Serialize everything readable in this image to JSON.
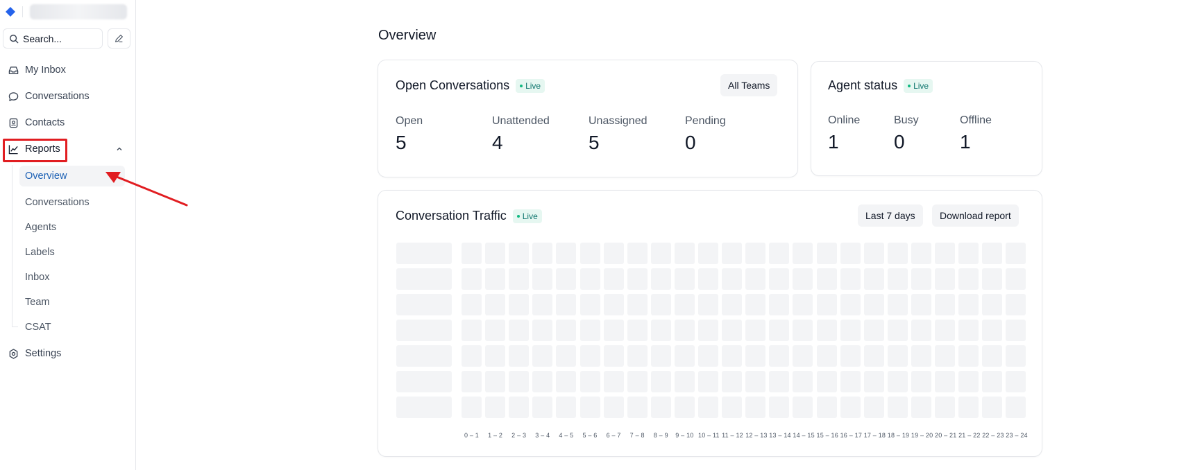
{
  "sidebar": {
    "search_placeholder": "Search...",
    "nav": {
      "my_inbox": "My Inbox",
      "conversations": "Conversations",
      "contacts": "Contacts",
      "reports": "Reports",
      "settings": "Settings"
    },
    "reports_sub": [
      "Overview",
      "Conversations",
      "Agents",
      "Labels",
      "Inbox",
      "Team",
      "CSAT"
    ]
  },
  "main": {
    "title": "Overview",
    "open_conversations": {
      "title": "Open Conversations",
      "live": "Live",
      "filter_label": "All Teams",
      "metrics": [
        {
          "label": "Open",
          "value": "5"
        },
        {
          "label": "Unattended",
          "value": "4"
        },
        {
          "label": "Unassigned",
          "value": "5"
        },
        {
          "label": "Pending",
          "value": "0"
        }
      ]
    },
    "agent_status": {
      "title": "Agent status",
      "live": "Live",
      "metrics": [
        {
          "label": "Online",
          "value": "1"
        },
        {
          "label": "Busy",
          "value": "0"
        },
        {
          "label": "Offline",
          "value": "1"
        }
      ]
    },
    "traffic": {
      "title": "Conversation Traffic",
      "live": "Live",
      "range_label": "Last 7 days",
      "download_label": "Download report",
      "hours": [
        "0 – 1",
        "1 – 2",
        "2 – 3",
        "3 – 4",
        "4 – 5",
        "5 – 6",
        "6 – 7",
        "7 – 8",
        "8 – 9",
        "9 – 10",
        "10 – 11",
        "11 – 12",
        "12 – 13",
        "13 – 14",
        "14 – 15",
        "15 – 16",
        "16 – 17",
        "17 – 18",
        "18 – 19",
        "19 – 20",
        "20 – 21",
        "21 – 22",
        "22 – 23",
        "23 – 24"
      ]
    }
  },
  "colors": {
    "accent": "#1a5fb4",
    "live_bg": "#e6f7f1",
    "live_text": "#0f766e",
    "annotation": "#e11d21"
  }
}
